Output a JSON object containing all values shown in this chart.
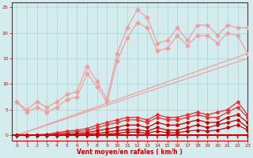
{
  "x": [
    0,
    1,
    2,
    3,
    4,
    5,
    6,
    7,
    8,
    9,
    10,
    11,
    12,
    13,
    14,
    15,
    16,
    17,
    18,
    19,
    20,
    21,
    22,
    23
  ],
  "line1": [
    6.5,
    5.0,
    6.5,
    5.5,
    6.5,
    8.0,
    8.5,
    13.5,
    10.5,
    7.0,
    16.0,
    21.0,
    24.5,
    23.0,
    18.0,
    18.5,
    21.0,
    18.5,
    21.5,
    21.5,
    19.5,
    21.5,
    21.0,
    21.0
  ],
  "line2": [
    6.5,
    4.5,
    5.5,
    4.5,
    5.5,
    7.0,
    7.5,
    12.0,
    9.5,
    6.5,
    14.5,
    19.0,
    22.0,
    21.0,
    16.5,
    17.0,
    19.5,
    17.5,
    19.5,
    19.5,
    18.0,
    20.0,
    19.5,
    16.0
  ],
  "line3_slope": [
    0.0,
    0.695,
    1.39,
    2.087,
    2.783,
    3.478,
    4.174,
    4.87,
    5.565,
    6.261,
    6.957,
    7.652,
    8.348,
    9.043,
    9.739,
    10.435,
    11.13,
    11.826,
    12.522,
    13.217,
    13.913,
    14.609,
    15.304,
    16.0
  ],
  "line4_slope": [
    0.0,
    0.652,
    1.304,
    1.957,
    2.609,
    3.261,
    3.913,
    4.565,
    5.217,
    5.87,
    6.522,
    7.174,
    7.826,
    8.478,
    9.13,
    9.783,
    10.435,
    11.087,
    11.739,
    12.391,
    13.043,
    13.696,
    14.348,
    15.0
  ],
  "line5": [
    0.0,
    0.0,
    0.1,
    0.2,
    0.5,
    0.8,
    1.0,
    1.3,
    2.0,
    2.5,
    3.0,
    3.5,
    3.5,
    3.0,
    4.0,
    3.5,
    3.5,
    4.0,
    4.5,
    4.0,
    4.5,
    5.0,
    6.5,
    4.0
  ],
  "line6": [
    0.0,
    0.0,
    0.0,
    0.1,
    0.3,
    0.5,
    0.7,
    0.9,
    1.5,
    2.0,
    2.5,
    3.0,
    3.0,
    2.5,
    3.5,
    3.0,
    3.0,
    3.5,
    4.0,
    3.5,
    3.5,
    4.5,
    5.5,
    3.5
  ],
  "line7": [
    0.0,
    0.0,
    0.0,
    0.0,
    0.1,
    0.2,
    0.3,
    0.5,
    0.9,
    1.2,
    1.6,
    2.0,
    2.0,
    1.5,
    2.5,
    2.0,
    2.0,
    2.5,
    3.0,
    2.5,
    2.5,
    3.5,
    4.0,
    2.5
  ],
  "line8": [
    0.0,
    0.0,
    0.0,
    0.0,
    0.0,
    0.1,
    0.1,
    0.2,
    0.4,
    0.6,
    0.9,
    1.1,
    1.1,
    0.8,
    1.5,
    1.0,
    1.0,
    1.5,
    2.0,
    1.5,
    2.0,
    2.5,
    3.0,
    1.5
  ],
  "line9": [
    0.0,
    0.0,
    0.0,
    0.0,
    0.0,
    0.0,
    0.0,
    0.0,
    0.1,
    0.2,
    0.4,
    0.6,
    0.6,
    0.4,
    0.8,
    0.5,
    0.5,
    0.8,
    1.0,
    0.8,
    1.0,
    1.5,
    2.0,
    1.0
  ],
  "color_light": "#f0a0a0",
  "color_mid": "#e87070",
  "color_dark": "#e83030",
  "color_darkest": "#cc0000",
  "bg_color": "#d4ecee",
  "grid_color": "#a8d4d8",
  "xlabel": "Vent moyen/en rafales ( km/h )",
  "ylim": [
    -1,
    26
  ],
  "xlim": [
    -0.5,
    23
  ],
  "yticks": [
    0,
    5,
    10,
    15,
    20,
    25
  ]
}
